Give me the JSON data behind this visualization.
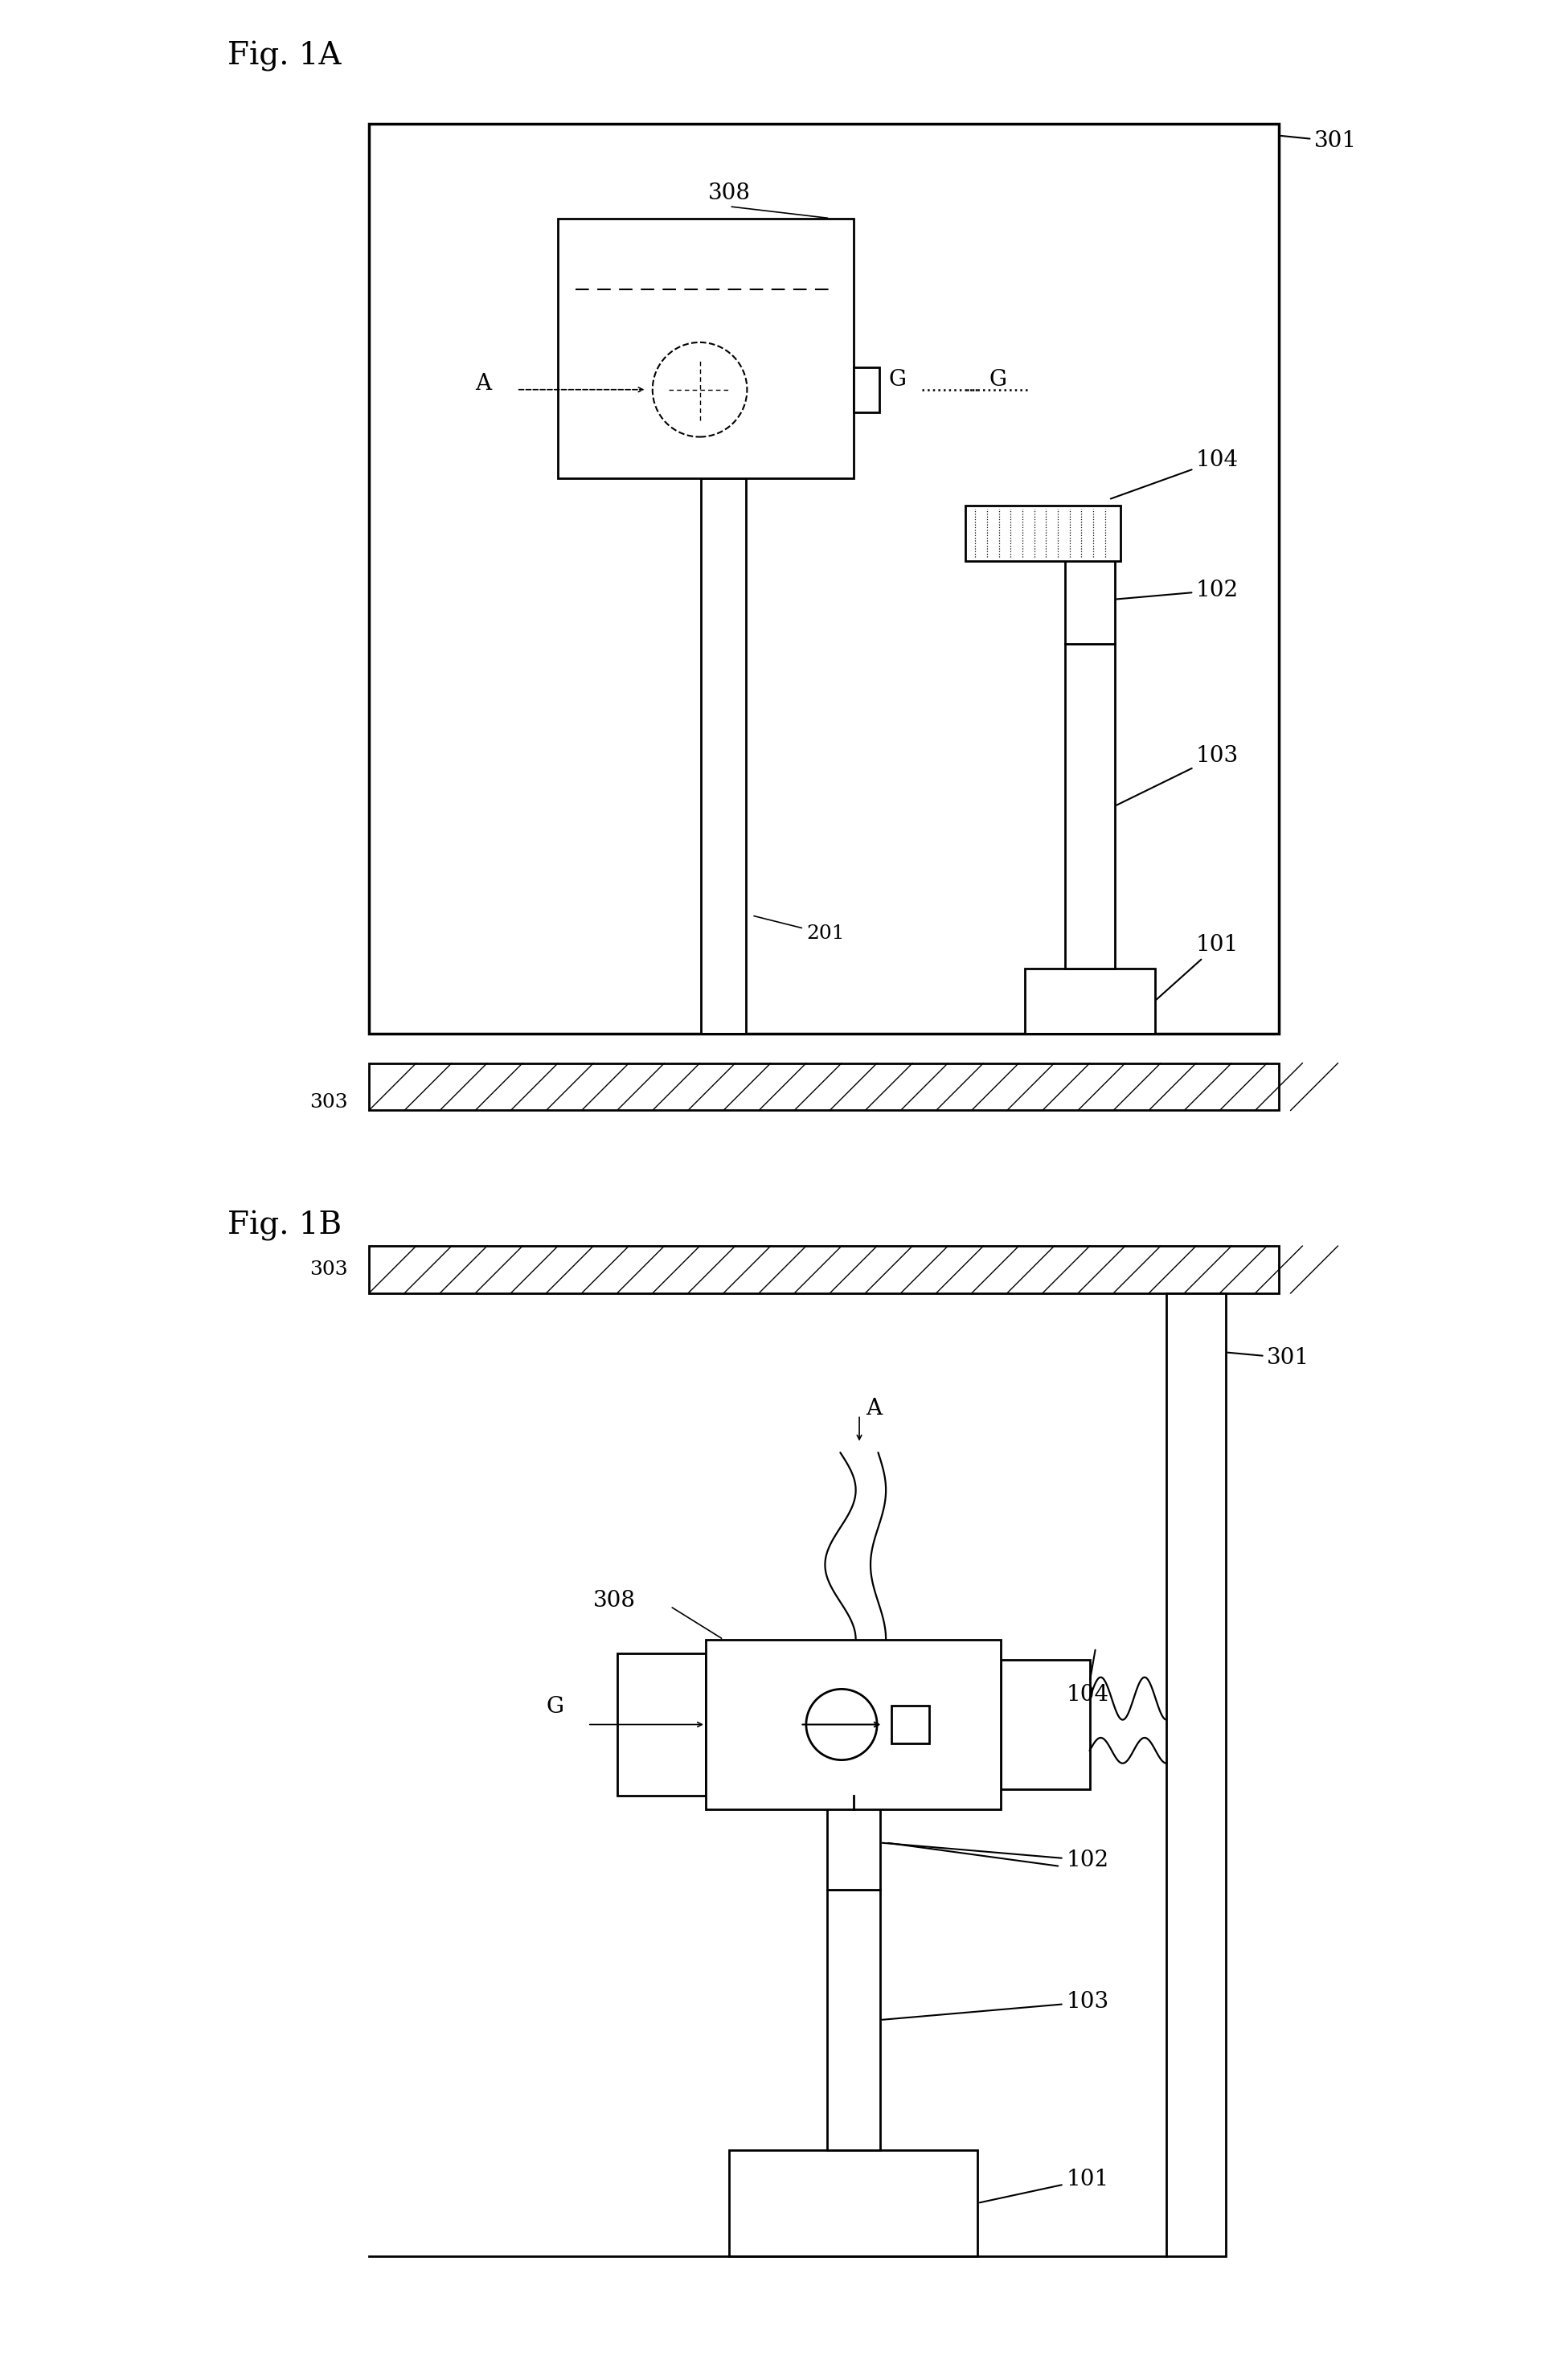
{
  "fig_width": 19.47,
  "fig_height": 29.61,
  "background": "#ffffff",
  "line_color": "#000000",
  "fig1A_label": "Fig. 1A",
  "fig1B_label": "Fig. 1B",
  "labels": {
    "301": "301",
    "308": "308",
    "201": "201",
    "104": "104",
    "102": "102",
    "103": "103",
    "101": "101",
    "303": "303",
    "A": "A",
    "G": "G"
  }
}
